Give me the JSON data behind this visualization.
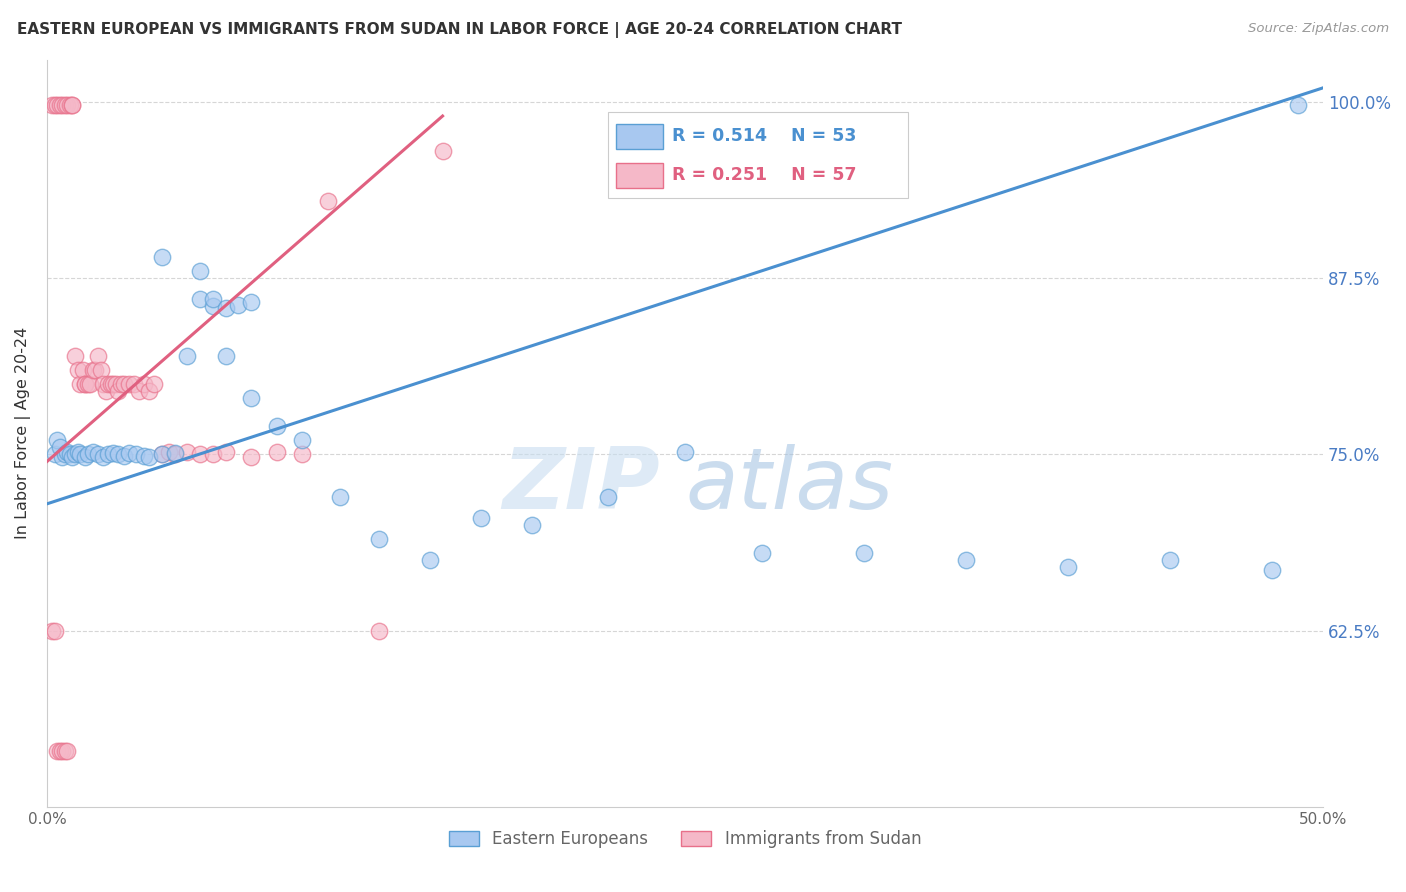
{
  "title": "EASTERN EUROPEAN VS IMMIGRANTS FROM SUDAN IN LABOR FORCE | AGE 20-24 CORRELATION CHART",
  "source": "Source: ZipAtlas.com",
  "ylabel": "In Labor Force | Age 20-24",
  "xlim": [
    0.0,
    0.5
  ],
  "ylim": [
    0.5,
    1.03
  ],
  "xticks": [
    0.0,
    0.1,
    0.2,
    0.3,
    0.4,
    0.5
  ],
  "xticklabels": [
    "0.0%",
    "",
    "",
    "",
    "",
    "50.0%"
  ],
  "yticks": [
    0.625,
    0.75,
    0.875,
    1.0
  ],
  "yticklabels": [
    "62.5%",
    "75.0%",
    "87.5%",
    "100.0%"
  ],
  "blue_color": "#a8c8f0",
  "pink_color": "#f5b8c8",
  "blue_edge_color": "#5a9fd4",
  "pink_edge_color": "#e8708a",
  "blue_line_color": "#4a90d0",
  "pink_line_color": "#e06080",
  "blue_label": "Eastern Europeans",
  "pink_label": "Immigrants from Sudan",
  "legend_blue_R": "R = 0.514",
  "legend_blue_N": "N = 53",
  "legend_pink_R": "R = 0.251",
  "legend_pink_N": "N = 57",
  "watermark_zip": "ZIP",
  "watermark_atlas": "atlas",
  "blue_line_x0": 0.0,
  "blue_line_y0": 0.715,
  "blue_line_x1": 0.5,
  "blue_line_y1": 1.01,
  "pink_line_x0": 0.0,
  "pink_line_y0": 0.745,
  "pink_line_x1": 0.155,
  "pink_line_y1": 0.99,
  "blue_x": [
    0.003,
    0.004,
    0.005,
    0.006,
    0.007,
    0.008,
    0.009,
    0.01,
    0.011,
    0.012,
    0.013,
    0.015,
    0.016,
    0.018,
    0.02,
    0.022,
    0.024,
    0.026,
    0.028,
    0.03,
    0.032,
    0.035,
    0.038,
    0.04,
    0.045,
    0.05,
    0.055,
    0.06,
    0.065,
    0.07,
    0.08,
    0.09,
    0.1,
    0.115,
    0.13,
    0.15,
    0.17,
    0.19,
    0.22,
    0.25,
    0.28,
    0.32,
    0.36,
    0.4,
    0.44,
    0.48,
    0.045,
    0.06,
    0.065,
    0.07,
    0.075,
    0.08,
    0.49
  ],
  "blue_y": [
    0.75,
    0.76,
    0.755,
    0.748,
    0.75,
    0.752,
    0.75,
    0.748,
    0.75,
    0.752,
    0.75,
    0.748,
    0.75,
    0.752,
    0.75,
    0.748,
    0.75,
    0.751,
    0.75,
    0.749,
    0.751,
    0.75,
    0.749,
    0.748,
    0.75,
    0.751,
    0.82,
    0.86,
    0.855,
    0.82,
    0.79,
    0.77,
    0.76,
    0.72,
    0.69,
    0.675,
    0.705,
    0.7,
    0.72,
    0.752,
    0.68,
    0.68,
    0.675,
    0.67,
    0.675,
    0.668,
    0.89,
    0.88,
    0.86,
    0.854,
    0.856,
    0.858,
    0.998
  ],
  "pink_x": [
    0.002,
    0.003,
    0.004,
    0.005,
    0.006,
    0.007,
    0.008,
    0.009,
    0.01,
    0.01,
    0.011,
    0.012,
    0.013,
    0.014,
    0.015,
    0.015,
    0.016,
    0.017,
    0.018,
    0.019,
    0.02,
    0.021,
    0.022,
    0.023,
    0.024,
    0.025,
    0.026,
    0.027,
    0.028,
    0.029,
    0.03,
    0.032,
    0.034,
    0.036,
    0.038,
    0.04,
    0.042,
    0.045,
    0.048,
    0.05,
    0.055,
    0.06,
    0.065,
    0.07,
    0.08,
    0.09,
    0.1,
    0.11,
    0.13,
    0.155,
    0.002,
    0.003,
    0.004,
    0.005,
    0.006,
    0.007,
    0.008
  ],
  "pink_y": [
    0.998,
    0.998,
    0.998,
    0.998,
    0.998,
    0.998,
    0.998,
    0.998,
    0.998,
    0.998,
    0.82,
    0.81,
    0.8,
    0.81,
    0.8,
    0.8,
    0.8,
    0.8,
    0.81,
    0.81,
    0.82,
    0.81,
    0.8,
    0.795,
    0.8,
    0.8,
    0.8,
    0.8,
    0.795,
    0.8,
    0.8,
    0.8,
    0.8,
    0.795,
    0.8,
    0.795,
    0.8,
    0.75,
    0.752,
    0.75,
    0.752,
    0.75,
    0.75,
    0.752,
    0.748,
    0.752,
    0.75,
    0.93,
    0.625,
    0.965,
    0.625,
    0.625,
    0.54,
    0.54,
    0.54,
    0.54,
    0.54
  ]
}
